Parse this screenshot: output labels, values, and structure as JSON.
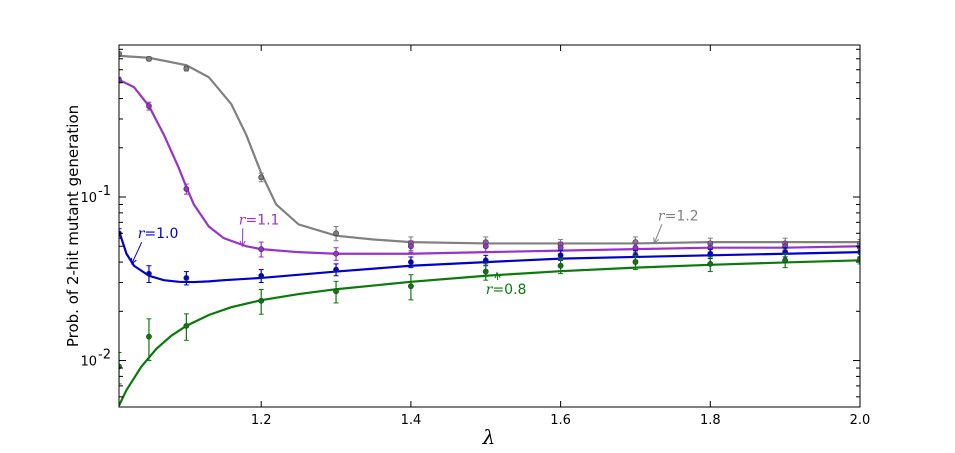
{
  "chart_data": {
    "type": "line",
    "xlabel": "λ",
    "ylabel": "Prob. of 2-hit mutant generation",
    "xlim": [
      1.01,
      2.0
    ],
    "ylim": [
      0.0052,
      0.85
    ],
    "yscale": "log",
    "grid": false,
    "x_ticks": [
      1.2,
      1.4,
      1.6,
      1.8,
      2.0
    ],
    "x_tick_labels": [
      "1.2",
      "1.4",
      "1.6",
      "1.8",
      "2.0"
    ],
    "y_ticks": [
      0.01,
      0.1
    ],
    "y_tick_base": "10",
    "y_tick_exponents": [
      "-2",
      "-1"
    ],
    "series": [
      {
        "name": "r=1.2",
        "color": "#808080",
        "curve": {
          "x": [
            1.01,
            1.05,
            1.1,
            1.13,
            1.16,
            1.18,
            1.2,
            1.22,
            1.25,
            1.3,
            1.35,
            1.4,
            1.5,
            1.6,
            1.7,
            1.8,
            1.9,
            2.0
          ],
          "y": [
            0.73,
            0.71,
            0.64,
            0.54,
            0.37,
            0.24,
            0.14,
            0.09,
            0.068,
            0.058,
            0.055,
            0.053,
            0.052,
            0.052,
            0.052,
            0.053,
            0.053,
            0.053
          ]
        },
        "points": [
          {
            "x": 1.01,
            "y": 0.75,
            "err": 0.02
          },
          {
            "x": 1.05,
            "y": 0.7,
            "err": 0.02
          },
          {
            "x": 1.1,
            "y": 0.61,
            "err": 0.02
          },
          {
            "x": 1.2,
            "y": 0.132,
            "err": 0.008
          },
          {
            "x": 1.3,
            "y": 0.06,
            "err": 0.006
          },
          {
            "x": 1.4,
            "y": 0.052,
            "err": 0.005
          },
          {
            "x": 1.5,
            "y": 0.053,
            "err": 0.004
          },
          {
            "x": 1.6,
            "y": 0.051,
            "err": 0.004
          },
          {
            "x": 1.7,
            "y": 0.053,
            "err": 0.004
          },
          {
            "x": 1.8,
            "y": 0.052,
            "err": 0.004
          },
          {
            "x": 1.9,
            "y": 0.052,
            "err": 0.004
          },
          {
            "x": 2.0,
            "y": 0.052,
            "err": 0.003
          }
        ]
      },
      {
        "name": "r=1.1",
        "color": "#9932cc",
        "curve": {
          "x": [
            1.01,
            1.03,
            1.05,
            1.07,
            1.09,
            1.1,
            1.11,
            1.13,
            1.15,
            1.18,
            1.2,
            1.25,
            1.3,
            1.4,
            1.5,
            1.6,
            1.7,
            1.8,
            1.9,
            2.0
          ],
          "y": [
            0.52,
            0.47,
            0.36,
            0.24,
            0.15,
            0.115,
            0.09,
            0.066,
            0.056,
            0.05,
            0.048,
            0.046,
            0.045,
            0.045,
            0.046,
            0.047,
            0.048,
            0.049,
            0.049,
            0.05
          ]
        },
        "points": [
          {
            "x": 1.01,
            "y": 0.52,
            "err": 0.02
          },
          {
            "x": 1.05,
            "y": 0.36,
            "err": 0.02
          },
          {
            "x": 1.1,
            "y": 0.112,
            "err": 0.008
          },
          {
            "x": 1.2,
            "y": 0.048,
            "err": 0.005
          },
          {
            "x": 1.3,
            "y": 0.045,
            "err": 0.004
          },
          {
            "x": 1.4,
            "y": 0.05,
            "err": 0.004
          },
          {
            "x": 1.5,
            "y": 0.05,
            "err": 0.004
          },
          {
            "x": 1.6,
            "y": 0.049,
            "err": 0.004
          },
          {
            "x": 1.7,
            "y": 0.049,
            "err": 0.003
          },
          {
            "x": 1.8,
            "y": 0.049,
            "err": 0.003
          },
          {
            "x": 1.9,
            "y": 0.05,
            "err": 0.003
          },
          {
            "x": 2.0,
            "y": 0.049,
            "err": 0.003
          }
        ]
      },
      {
        "name": "r=1.0",
        "color": "#0000cc",
        "curve": {
          "x": [
            1.01,
            1.02,
            1.03,
            1.05,
            1.07,
            1.09,
            1.11,
            1.13,
            1.15,
            1.2,
            1.3,
            1.4,
            1.5,
            1.6,
            1.7,
            1.8,
            1.9,
            2.0
          ],
          "y": [
            0.062,
            0.045,
            0.038,
            0.033,
            0.031,
            0.0303,
            0.0302,
            0.0305,
            0.031,
            0.032,
            0.035,
            0.038,
            0.04,
            0.042,
            0.043,
            0.044,
            0.045,
            0.046
          ]
        },
        "points": [
          {
            "x": 1.01,
            "y": 0.06,
            "err": 0.004
          },
          {
            "x": 1.05,
            "y": 0.034,
            "err": 0.004
          },
          {
            "x": 1.1,
            "y": 0.032,
            "err": 0.003
          },
          {
            "x": 1.2,
            "y": 0.033,
            "err": 0.003
          },
          {
            "x": 1.3,
            "y": 0.036,
            "err": 0.003
          },
          {
            "x": 1.4,
            "y": 0.04,
            "err": 0.003
          },
          {
            "x": 1.5,
            "y": 0.041,
            "err": 0.003
          },
          {
            "x": 1.6,
            "y": 0.044,
            "err": 0.003
          },
          {
            "x": 1.7,
            "y": 0.044,
            "err": 0.003
          },
          {
            "x": 1.8,
            "y": 0.045,
            "err": 0.003
          },
          {
            "x": 1.9,
            "y": 0.046,
            "err": 0.003
          },
          {
            "x": 2.0,
            "y": 0.046,
            "err": 0.003
          }
        ]
      },
      {
        "name": "r=0.8",
        "color": "#0a7a0a",
        "curve": {
          "x": [
            1.01,
            1.02,
            1.04,
            1.06,
            1.08,
            1.1,
            1.13,
            1.16,
            1.2,
            1.25,
            1.3,
            1.4,
            1.5,
            1.6,
            1.7,
            1.8,
            1.9,
            2.0
          ],
          "y": [
            0.0053,
            0.0066,
            0.0092,
            0.0118,
            0.0142,
            0.0163,
            0.019,
            0.0212,
            0.0234,
            0.0255,
            0.0273,
            0.0303,
            0.033,
            0.0352,
            0.037,
            0.0385,
            0.0398,
            0.041
          ]
        },
        "points": [
          {
            "x": 1.01,
            "y": 0.0092,
            "err": 0.002
          },
          {
            "x": 1.05,
            "y": 0.014,
            "err": 0.004
          },
          {
            "x": 1.1,
            "y": 0.0163,
            "err": 0.003
          },
          {
            "x": 1.2,
            "y": 0.0232,
            "err": 0.004
          },
          {
            "x": 1.3,
            "y": 0.0265,
            "err": 0.004
          },
          {
            "x": 1.4,
            "y": 0.0285,
            "err": 0.005
          },
          {
            "x": 1.5,
            "y": 0.035,
            "err": 0.004
          },
          {
            "x": 1.6,
            "y": 0.038,
            "err": 0.004
          },
          {
            "x": 1.7,
            "y": 0.04,
            "err": 0.004
          },
          {
            "x": 1.8,
            "y": 0.039,
            "err": 0.004
          },
          {
            "x": 1.9,
            "y": 0.041,
            "err": 0.004
          },
          {
            "x": 2.0,
            "y": 0.042,
            "err": 0.003
          }
        ]
      }
    ],
    "annotations": [
      {
        "id": "r12",
        "text": "=1.2",
        "var": "r",
        "color": "#808080",
        "text_x": 1.73,
        "text_y": 0.072,
        "arrow_to_x": 1.725,
        "arrow_to_y": 0.052
      },
      {
        "id": "r11",
        "text": "=1.1",
        "var": "r",
        "color": "#9932cc",
        "text_x": 1.17,
        "text_y": 0.068,
        "arrow_to_x": 1.175,
        "arrow_to_y": 0.05
      },
      {
        "id": "r10",
        "text": "=1.0",
        "var": "r",
        "color": "#0000cc",
        "text_x": 1.035,
        "text_y": 0.056,
        "arrow_to_x": 1.027,
        "arrow_to_y": 0.039
      },
      {
        "id": "r08",
        "text": "=0.8",
        "var": "r",
        "color": "#0a7a0a",
        "text_x": 1.5,
        "text_y": 0.0255,
        "arrow_to_x": 1.515,
        "arrow_to_y": 0.0345
      }
    ]
  }
}
